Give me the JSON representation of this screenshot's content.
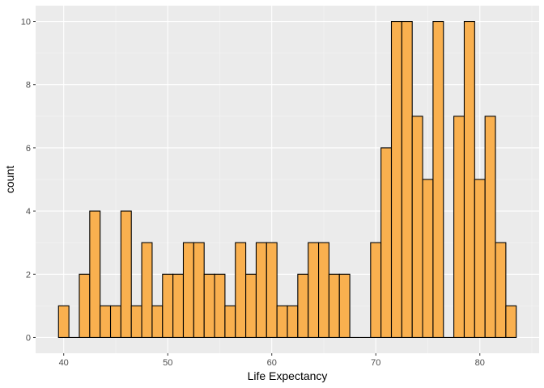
{
  "chart_data": {
    "type": "bar",
    "subtype": "histogram",
    "title": "",
    "xlabel": "Life Expectancy",
    "ylabel": "count",
    "bins": {
      "start": 39.5,
      "width": 1,
      "counts": [
        1,
        0,
        2,
        4,
        1,
        1,
        4,
        1,
        3,
        1,
        2,
        2,
        3,
        3,
        2,
        2,
        1,
        3,
        2,
        3,
        3,
        1,
        1,
        2,
        3,
        3,
        2,
        2,
        0,
        0,
        3,
        6,
        10,
        10,
        7,
        5,
        10,
        0,
        7,
        10,
        5,
        7,
        3,
        1
      ]
    },
    "xlim": [
      37.3,
      85.7
    ],
    "ylim": [
      -0.5,
      10.5
    ],
    "x_ticks": [
      40,
      50,
      60,
      70,
      80
    ],
    "x_tick_labels": [
      "40",
      "50",
      "60",
      "70",
      "80"
    ],
    "y_ticks": [
      0,
      2,
      4,
      6,
      8,
      10
    ],
    "y_tick_labels": [
      "0",
      "2",
      "4",
      "6",
      "8",
      "10"
    ],
    "grid": true,
    "colors": {
      "bar_fill": "#F9B04F",
      "bar_outline": "#000000",
      "panel_background": "#EBEBEB",
      "grid_major": "#FFFFFF",
      "grid_minor": "#F5F5F5"
    }
  }
}
